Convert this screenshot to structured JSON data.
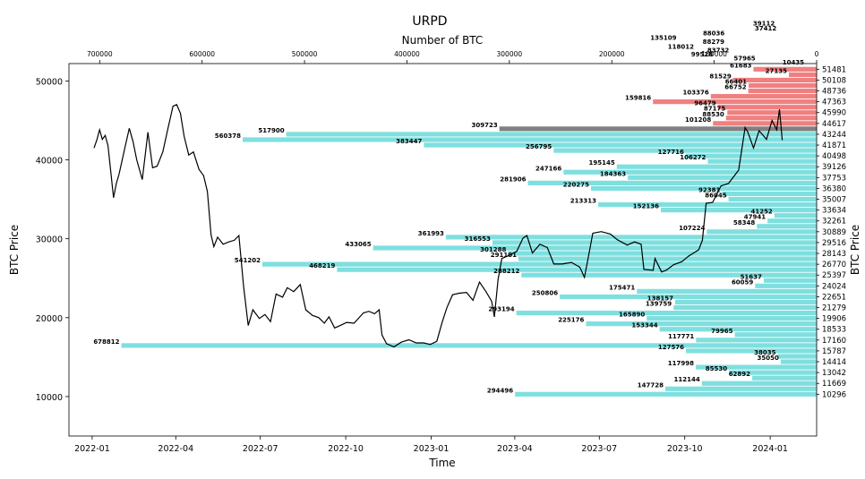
{
  "chart_data": {
    "type": "bar",
    "title": "URPD",
    "xlabel": "Time",
    "ylabel": "BTC Price",
    "ylabel_right": "BTC Price",
    "top_xlabel": "Number of BTC",
    "ylim": [
      5000,
      52200
    ],
    "time_range": [
      "2021-12-07",
      "2024-02-20"
    ],
    "top_xlim": [
      730000,
      0
    ],
    "y_ticks": [
      10000,
      20000,
      30000,
      40000,
      50000
    ],
    "y_tick_labels": [
      "10000",
      "20000",
      "30000",
      "40000",
      "50000"
    ],
    "x_ticks": [
      "2022-01-01",
      "2022-04-01",
      "2022-07-01",
      "2022-10-01",
      "2023-01-01",
      "2023-04-01",
      "2023-07-01",
      "2023-10-01",
      "2024-01-01"
    ],
    "x_tick_labels": [
      "2022-01",
      "2022-04",
      "2022-07",
      "2022-10",
      "2023-01",
      "2023-04",
      "2023-07",
      "2023-10",
      "2024-01"
    ],
    "top_ticks": [
      700000,
      600000,
      500000,
      400000,
      300000,
      200000,
      100000,
      0
    ],
    "top_tick_labels": [
      "700000",
      "600000",
      "500000",
      "400000",
      "300000",
      "200000",
      "100000",
      "0"
    ],
    "bins": [
      {
        "price": 51481,
        "label": "51481",
        "value": 61683,
        "color": "#f08080"
      },
      {
        "price": 50794,
        "label": "",
        "value": 27135,
        "color": "#f08080"
      },
      {
        "price": 50108,
        "label": "50108",
        "value": 81529,
        "color": "#f08080"
      },
      {
        "price": 49422,
        "label": "",
        "value": 66401,
        "color": "#f08080"
      },
      {
        "price": 48736,
        "label": "48736",
        "value": 66752,
        "color": "#f08080"
      },
      {
        "price": 48050,
        "label": "",
        "value": 103376,
        "color": "#f08080"
      },
      {
        "price": 47363,
        "label": "47363",
        "value": 159816,
        "color": "#f08080"
      },
      {
        "price": 46677,
        "label": "",
        "value": 96479,
        "color": "#f08080"
      },
      {
        "price": 45990,
        "label": "45990",
        "value": 87175,
        "color": "#f08080"
      },
      {
        "price": 45304,
        "label": "",
        "value": 88530,
        "color": "#f08080"
      },
      {
        "price": 44617,
        "label": "44617",
        "value": 101208,
        "color": "#f08080"
      },
      {
        "price": 43930,
        "label": "",
        "value": 309723,
        "color": "#808080"
      },
      {
        "price": 43244,
        "label": "43244",
        "value": 517900,
        "color": "#7fdfdf"
      },
      {
        "price": 42558,
        "label": "",
        "value": 560378,
        "color": "#7fdfdf"
      },
      {
        "price": 41871,
        "label": "41871",
        "value": 383447,
        "color": "#7fdfdf"
      },
      {
        "price": 41185,
        "label": "",
        "value": 256795,
        "color": "#7fdfdf"
      },
      {
        "price": 40498,
        "label": "40498",
        "value": 127716,
        "color": "#7fdfdf"
      },
      {
        "price": 39812,
        "label": "",
        "value": 106272,
        "color": "#7fdfdf"
      },
      {
        "price": 39126,
        "label": "39126",
        "value": 195145,
        "color": "#7fdfdf"
      },
      {
        "price": 38440,
        "label": "",
        "value": 247166,
        "color": "#7fdfdf"
      },
      {
        "price": 37753,
        "label": "37753",
        "value": 184363,
        "color": "#7fdfdf"
      },
      {
        "price": 37066,
        "label": "",
        "value": 281906,
        "color": "#7fdfdf"
      },
      {
        "price": 36380,
        "label": "36380",
        "value": 220275,
        "color": "#7fdfdf"
      },
      {
        "price": 35694,
        "label": "",
        "value": 92381,
        "color": "#7fdfdf"
      },
      {
        "price": 35007,
        "label": "35007",
        "value": 86045,
        "color": "#7fdfdf"
      },
      {
        "price": 34320,
        "label": "",
        "value": 213313,
        "color": "#7fdfdf"
      },
      {
        "price": 33634,
        "label": "33634",
        "value": 152136,
        "color": "#7fdfdf"
      },
      {
        "price": 32948,
        "label": "",
        "value": 41252,
        "color": "#7fdfdf"
      },
      {
        "price": 32261,
        "label": "32261",
        "value": 47941,
        "color": "#7fdfdf"
      },
      {
        "price": 31575,
        "label": "",
        "value": 58348,
        "color": "#7fdfdf"
      },
      {
        "price": 30889,
        "label": "30889",
        "value": 107224,
        "color": "#7fdfdf"
      },
      {
        "price": 30202,
        "label": "",
        "value": 361993,
        "color": "#7fdfdf"
      },
      {
        "price": 29516,
        "label": "29516",
        "value": 316553,
        "color": "#7fdfdf"
      },
      {
        "price": 28830,
        "label": "",
        "value": 433065,
        "color": "#7fdfdf"
      },
      {
        "price": 28143,
        "label": "28143",
        "value": 301288,
        "color": "#7fdfdf"
      },
      {
        "price": 27457,
        "label": "",
        "value": 291101,
        "color": "#7fdfdf"
      },
      {
        "price": 26770,
        "label": "26770",
        "value": 541202,
        "color": "#7fdfdf"
      },
      {
        "price": 26084,
        "label": "",
        "value": 468219,
        "color": "#7fdfdf"
      },
      {
        "price": 25397,
        "label": "25397",
        "value": 288212,
        "color": "#7fdfdf"
      },
      {
        "price": 24711,
        "label": "",
        "value": 51637,
        "color": "#7fdfdf"
      },
      {
        "price": 24024,
        "label": "24024",
        "value": 60059,
        "color": "#7fdfdf"
      },
      {
        "price": 23338,
        "label": "",
        "value": 175471,
        "color": "#7fdfdf"
      },
      {
        "price": 22651,
        "label": "22651",
        "value": 250806,
        "color": "#7fdfdf"
      },
      {
        "price": 21965,
        "label": "",
        "value": 138157,
        "color": "#7fdfdf"
      },
      {
        "price": 21279,
        "label": "21279",
        "value": 139759,
        "color": "#7fdfdf"
      },
      {
        "price": 20592,
        "label": "",
        "value": 293194,
        "color": "#7fdfdf"
      },
      {
        "price": 19906,
        "label": "19906",
        "value": 165890,
        "color": "#7fdfdf"
      },
      {
        "price": 19220,
        "label": "",
        "value": 225176,
        "color": "#7fdfdf"
      },
      {
        "price": 18533,
        "label": "18533",
        "value": 153344,
        "color": "#7fdfdf"
      },
      {
        "price": 17847,
        "label": "",
        "value": 79965,
        "color": "#7fdfdf"
      },
      {
        "price": 17160,
        "label": "17160",
        "value": 117771,
        "color": "#7fdfdf"
      },
      {
        "price": 16474,
        "label": "",
        "value": 678812,
        "color": "#7fdfdf"
      },
      {
        "price": 15787,
        "label": "15787",
        "value": 127576,
        "color": "#7fdfdf"
      },
      {
        "price": 15100,
        "label": "",
        "value": 38035,
        "color": "#7fdfdf"
      },
      {
        "price": 14414,
        "label": "14414",
        "value": 35050,
        "color": "#7fdfdf"
      },
      {
        "price": 13728,
        "label": "",
        "value": 117998,
        "color": "#7fdfdf"
      },
      {
        "price": 13042,
        "label": "13042",
        "value": 85530,
        "color": "#7fdfdf"
      },
      {
        "price": 12356,
        "label": "",
        "value": 62892,
        "color": "#7fdfdf"
      },
      {
        "price": 11669,
        "label": "11669",
        "value": 112144,
        "color": "#7fdfdf"
      },
      {
        "price": 10983,
        "label": "",
        "value": 147728,
        "color": "#7fdfdf"
      },
      {
        "price": 10296,
        "label": "10296",
        "value": 294496,
        "color": "#7fdfdf"
      }
    ],
    "upper_labels": [
      {
        "price": 57000,
        "value": 39112,
        "label": "39112"
      },
      {
        "price": 56400,
        "value": 37412,
        "label": "37412"
      },
      {
        "price": 55800,
        "value": 88036,
        "label": "88036"
      },
      {
        "price": 55200,
        "value": 135109,
        "label": "135109"
      },
      {
        "price": 54700,
        "value": 88279,
        "label": "88279"
      },
      {
        "price": 54100,
        "value": 118012,
        "label": "118012"
      },
      {
        "price": 53600,
        "value": 83732,
        "label": "83732"
      },
      {
        "price": 53100,
        "value": 99528,
        "label": "99528"
      },
      {
        "price": 52600,
        "value": 57965,
        "label": "57965"
      },
      {
        "price": 52100,
        "value": 10435,
        "label": "10435"
      }
    ],
    "price_series": {
      "name": "",
      "color": "#000000",
      "x": [
        "2022-01-03",
        "2022-01-06",
        "2022-01-09",
        "2022-01-12",
        "2022-01-15",
        "2022-01-18",
        "2022-01-21",
        "2022-01-24",
        "2022-01-27",
        "2022-01-30",
        "2022-02-05",
        "2022-02-10",
        "2022-02-14",
        "2022-02-18",
        "2022-02-24",
        "2022-03-02",
        "2022-03-07",
        "2022-03-12",
        "2022-03-18",
        "2022-03-24",
        "2022-03-29",
        "2022-04-02",
        "2022-04-06",
        "2022-04-10",
        "2022-04-15",
        "2022-04-20",
        "2022-04-26",
        "2022-05-01",
        "2022-05-05",
        "2022-05-09",
        "2022-05-12",
        "2022-05-16",
        "2022-05-22",
        "2022-05-28",
        "2022-06-03",
        "2022-06-08",
        "2022-06-13",
        "2022-06-18",
        "2022-06-23",
        "2022-06-30",
        "2022-07-06",
        "2022-07-12",
        "2022-07-18",
        "2022-07-25",
        "2022-07-30",
        "2022-08-06",
        "2022-08-13",
        "2022-08-19",
        "2022-08-26",
        "2022-09-02",
        "2022-09-08",
        "2022-09-13",
        "2022-09-19",
        "2022-09-25",
        "2022-10-02",
        "2022-10-10",
        "2022-10-20",
        "2022-10-26",
        "2022-11-01",
        "2022-11-06",
        "2022-11-09",
        "2022-11-14",
        "2022-11-22",
        "2022-11-30",
        "2022-12-08",
        "2022-12-16",
        "2022-12-24",
        "2022-12-31",
        "2023-01-07",
        "2023-01-13",
        "2023-01-18",
        "2023-01-24",
        "2023-01-31",
        "2023-02-08",
        "2023-02-15",
        "2023-02-22",
        "2023-03-01",
        "2023-03-07",
        "2023-03-10",
        "2023-03-14",
        "2023-03-18",
        "2023-03-26",
        "2023-04-03",
        "2023-04-10",
        "2023-04-14",
        "2023-04-20",
        "2023-04-28",
        "2023-05-06",
        "2023-05-13",
        "2023-05-22",
        "2023-06-01",
        "2023-06-10",
        "2023-06-15",
        "2023-06-21",
        "2023-06-24",
        "2023-07-03",
        "2023-07-13",
        "2023-07-20",
        "2023-07-31",
        "2023-08-08",
        "2023-08-15",
        "2023-08-18",
        "2023-08-28",
        "2023-08-30",
        "2023-09-06",
        "2023-09-11",
        "2023-09-19",
        "2023-09-28",
        "2023-10-05",
        "2023-10-16",
        "2023-10-20",
        "2023-10-24",
        "2023-10-31",
        "2023-11-09",
        "2023-11-17",
        "2023-11-28",
        "2023-12-05",
        "2023-12-08",
        "2023-12-14",
        "2023-12-20",
        "2023-12-28",
        "2024-01-03",
        "2024-01-08",
        "2024-01-11",
        "2024-01-14"
      ],
      "y": [
        41500,
        42500,
        43800,
        42600,
        43100,
        41800,
        38500,
        35200,
        37000,
        38200,
        41400,
        44000,
        42300,
        40000,
        37500,
        43500,
        39000,
        39200,
        41000,
        44200,
        46800,
        47000,
        45900,
        43000,
        40600,
        41000,
        38800,
        38000,
        36000,
        30500,
        29000,
        30200,
        29300,
        29600,
        29800,
        30400,
        24000,
        19000,
        21000,
        19900,
        20400,
        19500,
        23000,
        22600,
        23800,
        23300,
        24200,
        21000,
        20300,
        20000,
        19300,
        20100,
        18700,
        19000,
        19400,
        19300,
        20600,
        20800,
        20500,
        21000,
        17800,
        16700,
        16300,
        16900,
        17200,
        16800,
        16800,
        16600,
        17000,
        19500,
        21300,
        22900,
        23100,
        23200,
        22200,
        24500,
        23300,
        22100,
        20100,
        24800,
        27500,
        27900,
        28400,
        30100,
        30400,
        28200,
        29300,
        28900,
        26800,
        26800,
        27000,
        26400,
        25100,
        28800,
        30700,
        30900,
        30600,
        29900,
        29200,
        29600,
        29300,
        26100,
        26000,
        27500,
        25800,
        26000,
        26700,
        27100,
        27800,
        28600,
        29800,
        34500,
        34600,
        36700,
        37000,
        38700,
        44100,
        43500,
        41500,
        43700,
        42600,
        45000,
        43800,
        46400,
        42500
      ]
    }
  }
}
